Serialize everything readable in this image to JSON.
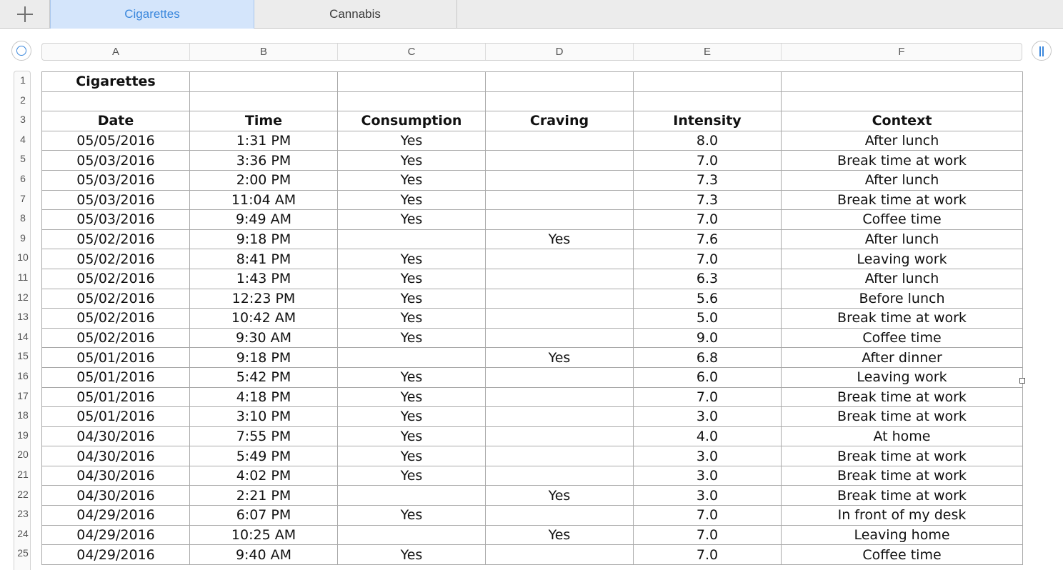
{
  "tabs": [
    "Cigarettes",
    "Cannabis"
  ],
  "column_headers": [
    "A",
    "B",
    "C",
    "D",
    "E",
    "F"
  ],
  "row_numbers": [
    "1",
    "2",
    "3",
    "4",
    "5",
    "6",
    "7",
    "8",
    "9",
    "10",
    "11",
    "12",
    "13",
    "14",
    "15",
    "16",
    "17",
    "18",
    "19",
    "20",
    "21",
    "22",
    "23",
    "24",
    "25"
  ],
  "table": {
    "title": "Cigarettes",
    "headers": [
      "Date",
      "Time",
      "Consumption",
      "Craving",
      "Intensity",
      "Context"
    ],
    "rows": [
      [
        "05/05/2016",
        "1:31 PM",
        "Yes",
        "",
        "8.0",
        "After lunch"
      ],
      [
        "05/03/2016",
        "3:36 PM",
        "Yes",
        "",
        "7.0",
        "Break time at work"
      ],
      [
        "05/03/2016",
        "2:00 PM",
        "Yes",
        "",
        "7.3",
        "After lunch"
      ],
      [
        "05/03/2016",
        "11:04 AM",
        "Yes",
        "",
        "7.3",
        "Break time at work"
      ],
      [
        "05/03/2016",
        "9:49 AM",
        "Yes",
        "",
        "7.0",
        "Coffee time"
      ],
      [
        "05/02/2016",
        "9:18 PM",
        "",
        "Yes",
        "7.6",
        "After lunch"
      ],
      [
        "05/02/2016",
        "8:41 PM",
        "Yes",
        "",
        "7.0",
        "Leaving work"
      ],
      [
        "05/02/2016",
        "1:43 PM",
        "Yes",
        "",
        "6.3",
        "After lunch"
      ],
      [
        "05/02/2016",
        "12:23 PM",
        "Yes",
        "",
        "5.6",
        "Before lunch"
      ],
      [
        "05/02/2016",
        "10:42 AM",
        "Yes",
        "",
        "5.0",
        "Break time at work"
      ],
      [
        "05/02/2016",
        "9:30 AM",
        "Yes",
        "",
        "9.0",
        "Coffee time"
      ],
      [
        "05/01/2016",
        "9:18 PM",
        "",
        "Yes",
        "6.8",
        "After dinner"
      ],
      [
        "05/01/2016",
        "5:42 PM",
        "Yes",
        "",
        "6.0",
        "Leaving work"
      ],
      [
        "05/01/2016",
        "4:18 PM",
        "Yes",
        "",
        "7.0",
        "Break time at work"
      ],
      [
        "05/01/2016",
        "3:10 PM",
        "Yes",
        "",
        "3.0",
        "Break time at work"
      ],
      [
        "04/30/2016",
        "7:55 PM",
        "Yes",
        "",
        "4.0",
        "At home"
      ],
      [
        "04/30/2016",
        "5:49 PM",
        "Yes",
        "",
        "3.0",
        "Break time at work"
      ],
      [
        "04/30/2016",
        "4:02 PM",
        "Yes",
        "",
        "3.0",
        "Break time at work"
      ],
      [
        "04/30/2016",
        "2:21 PM",
        "",
        "Yes",
        "3.0",
        "Break time at work"
      ],
      [
        "04/29/2016",
        "6:07 PM",
        "Yes",
        "",
        "7.0",
        "In front of my desk"
      ],
      [
        "04/29/2016",
        "10:25 AM",
        "",
        "Yes",
        "7.0",
        "Leaving home"
      ],
      [
        "04/29/2016",
        "9:40 AM",
        "Yes",
        "",
        "7.0",
        "Coffee time"
      ]
    ]
  },
  "icons": {
    "add": "plus-icon",
    "select_table": "circle-icon",
    "freeze": "pause-icon"
  },
  "colors": {
    "accent": "#3a87dc",
    "active_tab_bg": "#d4e5fb"
  }
}
